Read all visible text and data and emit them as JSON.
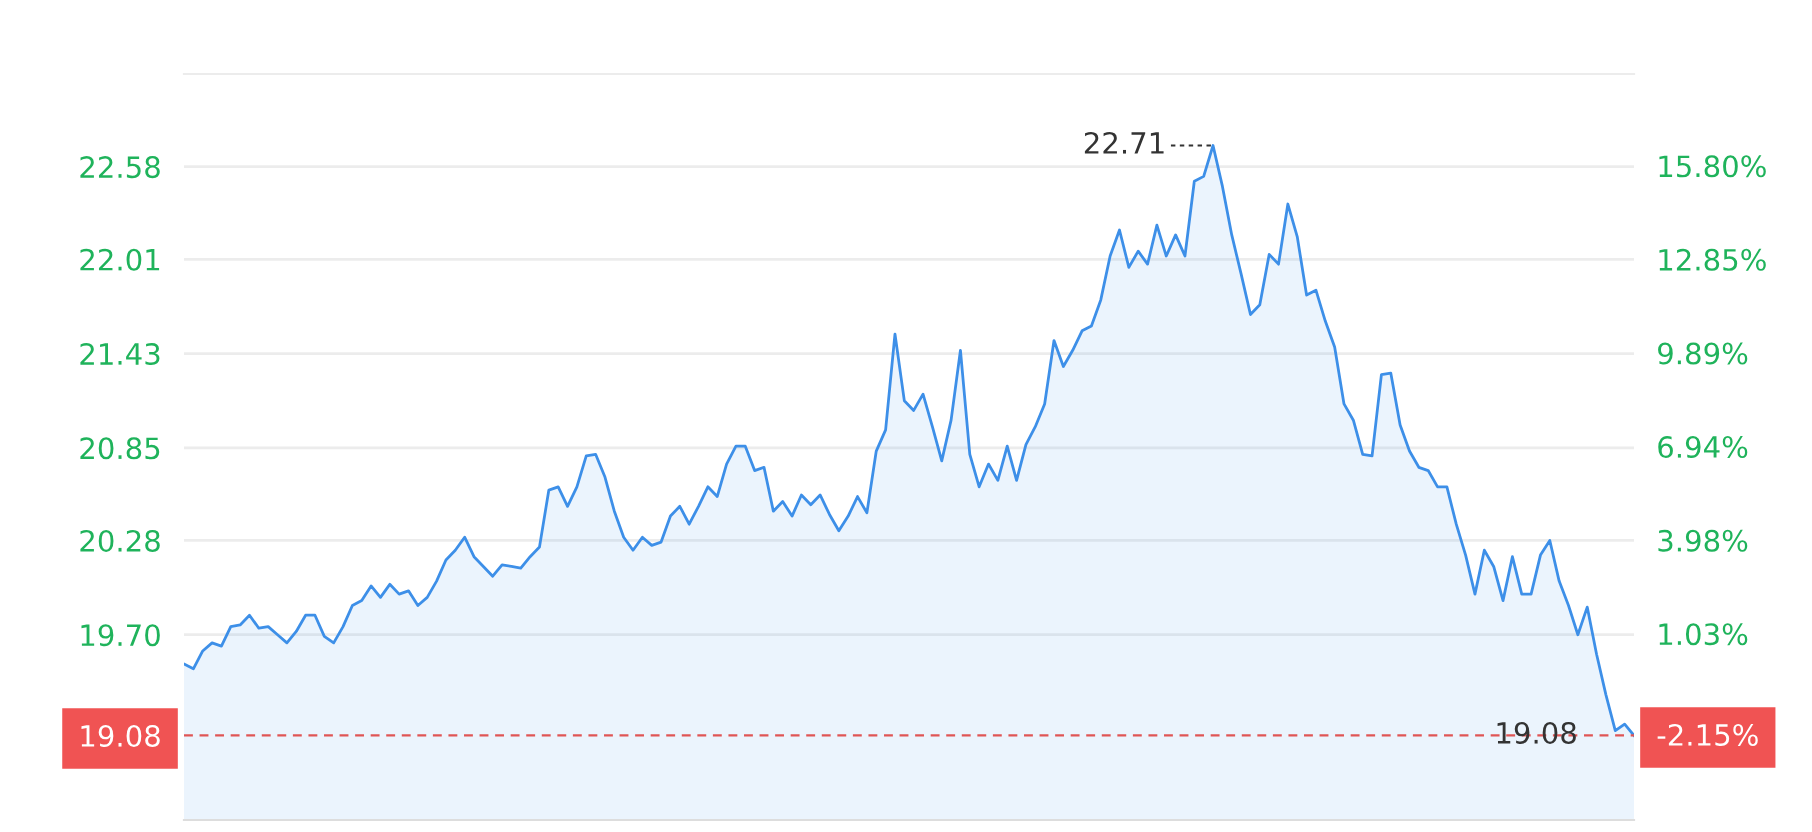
{
  "chart_data": {
    "type": "area",
    "categories": [
      null,
      null,
      null,
      null,
      null,
      null,
      null,
      null,
      null,
      null,
      null,
      null,
      null,
      null,
      null,
      null,
      null,
      null,
      null,
      null,
      null,
      null,
      null,
      null,
      null,
      null,
      null,
      null,
      null,
      null,
      null,
      null,
      null,
      null,
      null,
      null,
      null,
      null,
      null,
      null,
      null,
      null,
      null,
      null,
      null,
      null,
      null,
      null,
      null,
      null,
      null,
      null,
      null,
      null,
      null,
      null,
      null,
      null,
      null,
      null,
      null,
      null,
      null,
      null,
      null,
      null,
      null,
      null,
      null,
      null,
      null,
      null,
      null,
      null,
      null,
      null,
      null,
      null,
      null,
      null,
      null,
      null,
      null,
      null,
      null,
      null,
      null,
      null,
      null,
      null,
      null,
      null,
      null,
      null,
      null,
      null,
      null,
      null,
      null,
      null,
      null,
      null,
      null,
      null,
      null,
      null,
      null,
      null,
      null,
      null,
      null,
      null,
      null,
      null,
      null,
      null,
      null,
      null,
      null,
      null,
      null,
      null,
      null,
      null,
      null,
      null,
      null,
      null,
      null,
      null,
      null,
      null,
      null,
      null,
      null,
      null,
      null,
      null,
      null,
      null,
      null,
      null,
      null,
      null,
      null,
      null,
      null,
      null,
      null,
      null,
      null,
      null,
      null,
      null,
      null,
      null
    ],
    "series": [
      {
        "color": "#3d8fe8",
        "values": [
          19.52,
          19.49,
          19.6,
          19.65,
          19.63,
          19.75,
          19.76,
          19.82,
          19.74,
          19.75,
          19.7,
          19.65,
          19.72,
          19.82,
          19.82,
          19.69,
          19.65,
          19.75,
          19.88,
          19.91,
          20.0,
          19.93,
          20.01,
          19.95,
          19.97,
          19.88,
          19.93,
          20.03,
          20.16,
          20.22,
          20.3,
          20.18,
          20.12,
          20.06,
          20.13,
          20.12,
          20.11,
          20.18,
          20.24,
          20.59,
          20.61,
          20.49,
          20.61,
          20.8,
          20.81,
          20.67,
          20.46,
          20.3,
          20.22,
          20.3,
          20.25,
          20.27,
          20.43,
          20.49,
          20.38,
          20.49,
          20.61,
          20.55,
          20.75,
          20.86,
          20.86,
          20.71,
          20.73,
          20.46,
          20.52,
          20.43,
          20.56,
          20.5,
          20.56,
          20.44,
          20.34,
          20.43,
          20.55,
          20.45,
          20.83,
          20.96,
          21.55,
          21.14,
          21.08,
          21.18,
          20.98,
          20.77,
          21.02,
          21.45,
          20.81,
          20.61,
          20.75,
          20.65,
          20.86,
          20.65,
          20.87,
          20.98,
          21.12,
          21.51,
          21.35,
          21.45,
          21.57,
          21.6,
          21.76,
          22.03,
          22.19,
          21.96,
          22.06,
          21.98,
          22.22,
          22.03,
          22.16,
          22.03,
          22.49,
          22.52,
          22.71,
          22.46,
          22.16,
          21.92,
          21.67,
          21.73,
          22.04,
          21.98,
          22.35,
          22.15,
          21.79,
          21.82,
          21.63,
          21.47,
          21.12,
          21.02,
          20.81,
          20.8,
          21.3,
          21.31,
          20.99,
          20.83,
          20.73,
          20.71,
          20.61,
          20.61,
          20.38,
          20.19,
          19.95,
          20.22,
          20.12,
          19.91,
          20.18,
          19.95,
          19.95,
          20.19,
          20.28,
          20.03,
          19.88,
          19.7,
          19.87,
          19.58,
          19.33,
          19.11,
          19.15,
          19.08
        ]
      }
    ],
    "ylim": [
      18.56,
      23.15
    ],
    "yticks": [
      {
        "value": 19.08,
        "label": "19.08"
      },
      {
        "value": 19.7,
        "label": "19.70"
      },
      {
        "value": 20.28,
        "label": "20.28"
      },
      {
        "value": 20.85,
        "label": "20.85"
      },
      {
        "value": 21.43,
        "label": "21.43"
      },
      {
        "value": 22.01,
        "label": "22.01"
      },
      {
        "value": 22.58,
        "label": "22.58"
      }
    ],
    "y2lim": [
      -4.85,
      18.7
    ],
    "y2ticks": [
      {
        "value": -2.15,
        "label": "-2.15%"
      },
      {
        "value": 1.03,
        "label": "1.03%"
      },
      {
        "value": 3.98,
        "label": "3.98%"
      },
      {
        "value": 6.94,
        "label": "6.94%"
      },
      {
        "value": 9.89,
        "label": "9.89%"
      },
      {
        "value": 12.85,
        "label": "12.85%"
      },
      {
        "value": 15.8,
        "label": "15.80%"
      }
    ],
    "ref_lines": [
      {
        "axis": "y",
        "value": 19.08,
        "label": "19.08",
        "color": "#e05555",
        "line_style": "dashed"
      }
    ],
    "annotations": [
      "22.71"
    ],
    "grid": "y",
    "tick_labels": "y"
  }
}
